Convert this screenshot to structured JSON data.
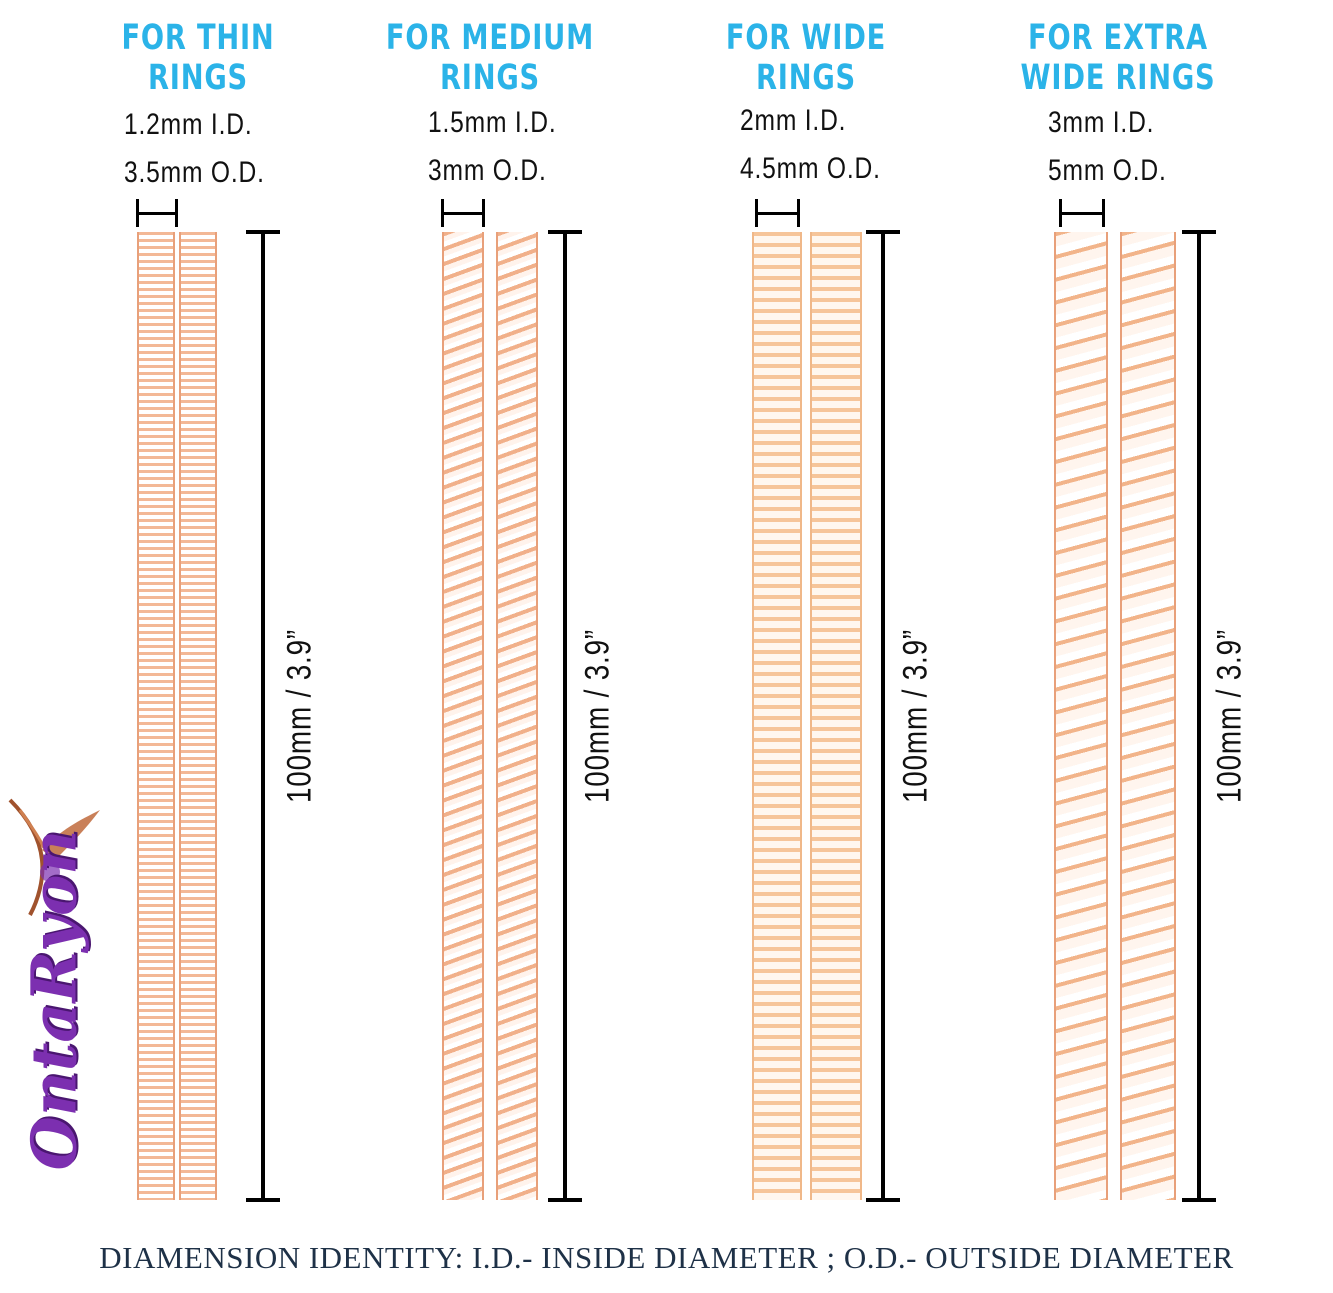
{
  "columns": [
    {
      "title_line1": "FOR THIN",
      "title_line2": "RINGS",
      "inside_diameter": "1.2mm  I.D.",
      "outside_diameter": "3.5mm  O.D.",
      "length_label": "100mm  /  3.9”",
      "spring_style": "thin"
    },
    {
      "title_line1": "FOR MEDIUM",
      "title_line2": "RINGS",
      "inside_diameter": "1.5mm  I.D.",
      "outside_diameter": "3mm  O.D.",
      "length_label": "100mm  /  3.9”",
      "spring_style": "med"
    },
    {
      "title_line1": "FOR WIDE",
      "title_line2": "RINGS",
      "inside_diameter": "2mm  I.D.",
      "outside_diameter": "4.5mm  O.D.",
      "length_label": "100mm  /  3.9”",
      "spring_style": "wide"
    },
    {
      "title_line1": "FOR EXTRA",
      "title_line2": "WIDE RINGS",
      "inside_diameter": "3mm  I.D.",
      "outside_diameter": "5mm  O.D.",
      "length_label": "100mm  /  3.9”",
      "spring_style": "xwide"
    }
  ],
  "footer_text": "DIAMENSION IDENTITY: I.D.- INSIDE DIAMETER ; O.D.- OUTSIDE DIAMETER",
  "logo_text": "OntaRyon",
  "colors": {
    "title": "#2bb3e8",
    "spring": "#f3b896",
    "logo": "#7c2fb0",
    "footer": "#1e3147"
  }
}
